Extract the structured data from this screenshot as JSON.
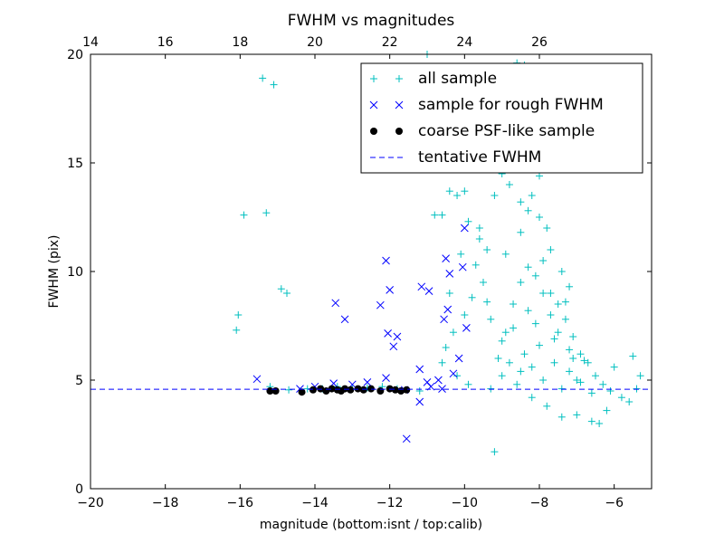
{
  "chart_data": {
    "type": "scatter",
    "title": "FWHM vs magnitudes",
    "xlabel": "magnitude (bottom:isnt / top:calib)",
    "ylabel": "FWHM (pix)",
    "xlim": [
      -20,
      -5
    ],
    "ylim": [
      0,
      20
    ],
    "x_ticks": [
      -20,
      -18,
      -16,
      -14,
      -12,
      -10,
      -8,
      -6
    ],
    "x_tick_labels": [
      "−20",
      "−18",
      "−16",
      "−14",
      "−12",
      "−10",
      "−8",
      "−6"
    ],
    "y_ticks": [
      0,
      5,
      10,
      15,
      20
    ],
    "y_tick_labels": [
      "0",
      "5",
      "10",
      "15",
      "20"
    ],
    "top_axis": {
      "ticks": [
        14,
        16,
        18,
        20,
        22,
        24,
        26
      ],
      "tick_labels": [
        "14",
        "16",
        "18",
        "20",
        "22",
        "24",
        "26"
      ],
      "offset_from_bottom": 34
    },
    "grid": false,
    "legend_position": "upper right",
    "series": [
      {
        "name": "all sample",
        "marker": "plus",
        "color": "#00bfbf",
        "points": [
          [
            -15.4,
            18.9
          ],
          [
            -15.1,
            18.6
          ],
          [
            -15.9,
            12.6
          ],
          [
            -15.3,
            12.7
          ],
          [
            -16.05,
            8.0
          ],
          [
            -16.1,
            7.3
          ],
          [
            -14.9,
            9.2
          ],
          [
            -14.75,
            9.0
          ],
          [
            -15.2,
            4.7
          ],
          [
            -14.7,
            4.55
          ],
          [
            -14.2,
            4.6
          ],
          [
            -13.8,
            4.6
          ],
          [
            -13.4,
            4.7
          ],
          [
            -13.0,
            4.6
          ],
          [
            -12.6,
            4.65
          ],
          [
            -12.2,
            4.7
          ],
          [
            -11.8,
            4.6
          ],
          [
            -11.2,
            4.5
          ],
          [
            -11.0,
            20.0
          ],
          [
            -10.8,
            12.6
          ],
          [
            -10.6,
            12.6
          ],
          [
            -10.4,
            13.7
          ],
          [
            -10.2,
            13.5
          ],
          [
            -10.0,
            13.7
          ],
          [
            -9.9,
            12.3
          ],
          [
            -9.6,
            11.5
          ],
          [
            -9.4,
            11.0
          ],
          [
            -9.2,
            13.5
          ],
          [
            -9.0,
            14.5
          ],
          [
            -8.8,
            14.0
          ],
          [
            -8.6,
            19.6
          ],
          [
            -8.4,
            19.5
          ],
          [
            -8.2,
            13.5
          ],
          [
            -8.0,
            14.4
          ],
          [
            -8.3,
            12.8
          ],
          [
            -8.5,
            11.8
          ],
          [
            -9.7,
            10.3
          ],
          [
            -9.5,
            9.5
          ],
          [
            -9.8,
            8.8
          ],
          [
            -10.0,
            8.0
          ],
          [
            -10.3,
            7.2
          ],
          [
            -10.5,
            6.5
          ],
          [
            -10.6,
            5.8
          ],
          [
            -10.2,
            5.2
          ],
          [
            -9.9,
            4.8
          ],
          [
            -9.2,
            1.7
          ],
          [
            -9.3,
            4.6
          ],
          [
            -9.1,
            6.0
          ],
          [
            -8.9,
            7.2
          ],
          [
            -8.7,
            8.5
          ],
          [
            -8.5,
            9.5
          ],
          [
            -8.3,
            10.2
          ],
          [
            -8.1,
            9.8
          ],
          [
            -7.9,
            10.5
          ],
          [
            -7.7,
            9.0
          ],
          [
            -7.5,
            8.5
          ],
          [
            -7.3,
            7.8
          ],
          [
            -7.1,
            7.0
          ],
          [
            -6.9,
            6.2
          ],
          [
            -6.7,
            5.8
          ],
          [
            -6.5,
            5.2
          ],
          [
            -6.3,
            4.8
          ],
          [
            -6.1,
            4.5
          ],
          [
            -5.8,
            4.2
          ],
          [
            -5.6,
            4.0
          ],
          [
            -5.4,
            4.6
          ],
          [
            -5.3,
            5.2
          ],
          [
            -5.5,
            6.1
          ],
          [
            -6.0,
            5.6
          ],
          [
            -6.2,
            3.6
          ],
          [
            -6.4,
            3.0
          ],
          [
            -6.6,
            3.1
          ],
          [
            -7.0,
            3.4
          ],
          [
            -7.4,
            3.3
          ],
          [
            -7.8,
            3.8
          ],
          [
            -8.2,
            4.2
          ],
          [
            -8.6,
            4.8
          ],
          [
            -9.0,
            5.2
          ],
          [
            -8.8,
            5.8
          ],
          [
            -8.4,
            6.2
          ],
          [
            -8.0,
            6.6
          ],
          [
            -7.6,
            6.9
          ],
          [
            -7.2,
            6.4
          ],
          [
            -6.8,
            5.9
          ],
          [
            -8.1,
            7.6
          ],
          [
            -7.7,
            8.0
          ],
          [
            -7.3,
            8.6
          ],
          [
            -7.9,
            9.0
          ],
          [
            -8.3,
            8.2
          ],
          [
            -8.7,
            7.4
          ],
          [
            -9.3,
            7.8
          ],
          [
            -9.0,
            6.8
          ],
          [
            -8.5,
            5.4
          ],
          [
            -7.9,
            5.0
          ],
          [
            -7.4,
            4.6
          ],
          [
            -7.0,
            5.0
          ],
          [
            -6.6,
            4.4
          ],
          [
            -7.2,
            5.4
          ],
          [
            -7.6,
            5.8
          ],
          [
            -8.2,
            5.6
          ],
          [
            -7.5,
            7.2
          ],
          [
            -7.1,
            6.0
          ],
          [
            -6.9,
            4.9
          ],
          [
            -8.0,
            12.5
          ],
          [
            -8.5,
            13.2
          ],
          [
            -7.7,
            11.0
          ],
          [
            -7.8,
            12.0
          ],
          [
            -8.9,
            10.8
          ],
          [
            -9.6,
            12.0
          ],
          [
            -10.1,
            10.8
          ],
          [
            -10.4,
            9.0
          ],
          [
            -9.4,
            8.6
          ],
          [
            -7.4,
            10.0
          ],
          [
            -7.2,
            9.3
          ]
        ]
      },
      {
        "name": "sample for rough FWHM",
        "marker": "x",
        "color": "#0000ff",
        "points": [
          [
            -15.55,
            5.05
          ],
          [
            -13.45,
            8.55
          ],
          [
            -13.2,
            7.8
          ],
          [
            -12.1,
            10.5
          ],
          [
            -12.0,
            9.15
          ],
          [
            -12.25,
            8.45
          ],
          [
            -12.05,
            7.15
          ],
          [
            -11.9,
            6.55
          ],
          [
            -11.8,
            7.0
          ],
          [
            -11.55,
            2.3
          ],
          [
            -11.15,
            9.3
          ],
          [
            -10.95,
            9.1
          ],
          [
            -10.5,
            10.6
          ],
          [
            -10.4,
            9.9
          ],
          [
            -10.45,
            8.25
          ],
          [
            -10.55,
            7.8
          ],
          [
            -10.0,
            12.0
          ],
          [
            -10.05,
            10.2
          ],
          [
            -9.95,
            7.4
          ],
          [
            -10.15,
            6.0
          ],
          [
            -11.2,
            5.5
          ],
          [
            -11.0,
            4.9
          ],
          [
            -11.2,
            4.0
          ],
          [
            -10.7,
            5.0
          ],
          [
            -10.3,
            5.3
          ],
          [
            -12.1,
            5.1
          ],
          [
            -12.6,
            4.9
          ],
          [
            -13.0,
            4.8
          ],
          [
            -13.5,
            4.85
          ],
          [
            -14.0,
            4.7
          ],
          [
            -14.4,
            4.6
          ],
          [
            -10.9,
            4.7
          ],
          [
            -10.6,
            4.6
          ],
          [
            -11.6,
            4.55
          ]
        ]
      },
      {
        "name": "coarse PSF-like sample",
        "marker": "dot",
        "color": "#000000",
        "points": [
          [
            -15.2,
            4.5
          ],
          [
            -15.05,
            4.5
          ],
          [
            -14.35,
            4.45
          ],
          [
            -14.05,
            4.55
          ],
          [
            -13.85,
            4.6
          ],
          [
            -13.7,
            4.5
          ],
          [
            -13.55,
            4.6
          ],
          [
            -13.4,
            4.55
          ],
          [
            -13.3,
            4.5
          ],
          [
            -13.2,
            4.6
          ],
          [
            -13.05,
            4.55
          ],
          [
            -12.85,
            4.6
          ],
          [
            -12.7,
            4.55
          ],
          [
            -12.5,
            4.6
          ],
          [
            -12.25,
            4.5
          ],
          [
            -12.0,
            4.6
          ],
          [
            -11.85,
            4.55
          ],
          [
            -11.7,
            4.5
          ],
          [
            -11.55,
            4.55
          ]
        ]
      },
      {
        "name": "tentative FWHM",
        "style": "dashed-line",
        "color": "#0000ff",
        "y": 4.58
      }
    ]
  }
}
